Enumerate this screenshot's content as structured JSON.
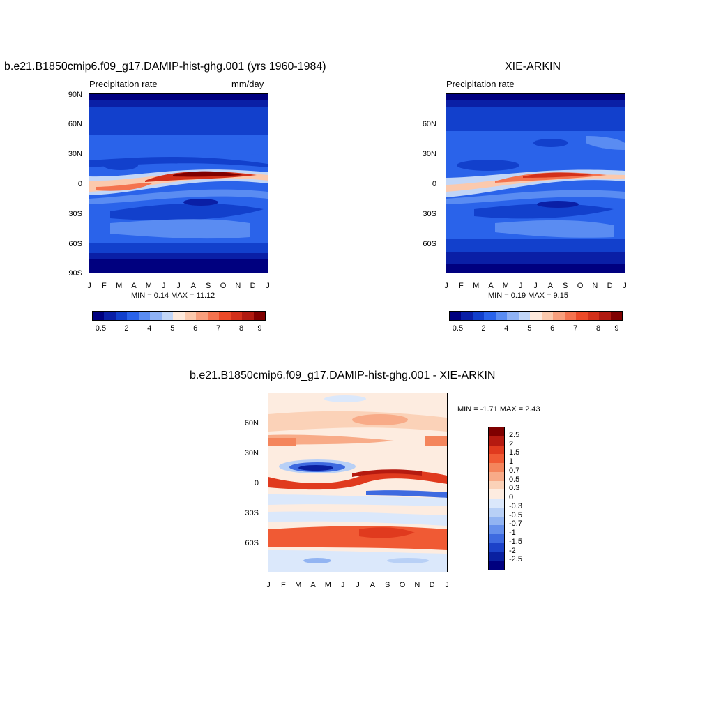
{
  "chart_data": [
    {
      "type": "heatmap",
      "title": "b.e21.B1850cmip6.f09_g17.DAMIP-hist-ghg.001 (yrs 1960-1984)",
      "left_subtitle": "Precipitation rate",
      "right_subtitle": "mm/day",
      "stats": "MIN =   0.14 MAX =  11.12",
      "y_ticks": [
        "90N",
        "60N",
        "30N",
        "0",
        "30S",
        "60S",
        "90S"
      ],
      "x_ticks": [
        "J",
        "F",
        "M",
        "A",
        "M",
        "J",
        "J",
        "A",
        "S",
        "O",
        "N",
        "D",
        "J"
      ],
      "colorbar_labels": [
        "0.5",
        "2",
        "4",
        "5",
        "6",
        "7",
        "8",
        "9"
      ]
    },
    {
      "type": "heatmap",
      "title": "XIE-ARKIN",
      "left_subtitle": "Precipitation rate",
      "stats": "MIN =   0.19 MAX =   9.15",
      "y_ticks": [
        "60N",
        "30N",
        "0",
        "30S",
        "60S"
      ],
      "x_ticks": [
        "J",
        "F",
        "M",
        "A",
        "M",
        "J",
        "J",
        "A",
        "S",
        "O",
        "N",
        "D",
        "J"
      ],
      "colorbar_labels": [
        "0.5",
        "2",
        "4",
        "5",
        "6",
        "7",
        "8",
        "9"
      ]
    },
    {
      "type": "heatmap",
      "title": "b.e21.B1850cmip6.f09_g17.DAMIP-hist-ghg.001 - XIE-ARKIN",
      "stats": "MIN =  -1.71 MAX =   2.43",
      "y_ticks": [
        "60N",
        "30N",
        "0",
        "30S",
        "60S"
      ],
      "x_ticks": [
        "J",
        "F",
        "M",
        "A",
        "M",
        "J",
        "J",
        "A",
        "S",
        "O",
        "N",
        "D",
        "J"
      ],
      "colorbar_labels": [
        "2.5",
        "2",
        "1.5",
        "1",
        "0.7",
        "0.5",
        "0.3",
        "0",
        "-0.3",
        "-0.5",
        "-0.7",
        "-1",
        "-1.5",
        "-2",
        "-2.5"
      ]
    }
  ],
  "colors": {
    "precip_scale": [
      "#00007f",
      "#0a1fa6",
      "#1240cc",
      "#2a63ea",
      "#5a8cf2",
      "#8fb2f5",
      "#c2d6f7",
      "#fde9dc",
      "#fbc9ad",
      "#f89f7d",
      "#f4734f",
      "#ec4a28",
      "#d2301a",
      "#b01a10",
      "#7f0000"
    ],
    "diff_scale": [
      "#7f0000",
      "#b51a10",
      "#e03a1e",
      "#f05a34",
      "#f4855c",
      "#f8ab88",
      "#fbd2b8",
      "#fdece0",
      "#dbe8fb",
      "#b8d0f6",
      "#92b4f2",
      "#6690ec",
      "#3e6ae0",
      "#1c42c8",
      "#0a20a0",
      "#00007f"
    ]
  }
}
